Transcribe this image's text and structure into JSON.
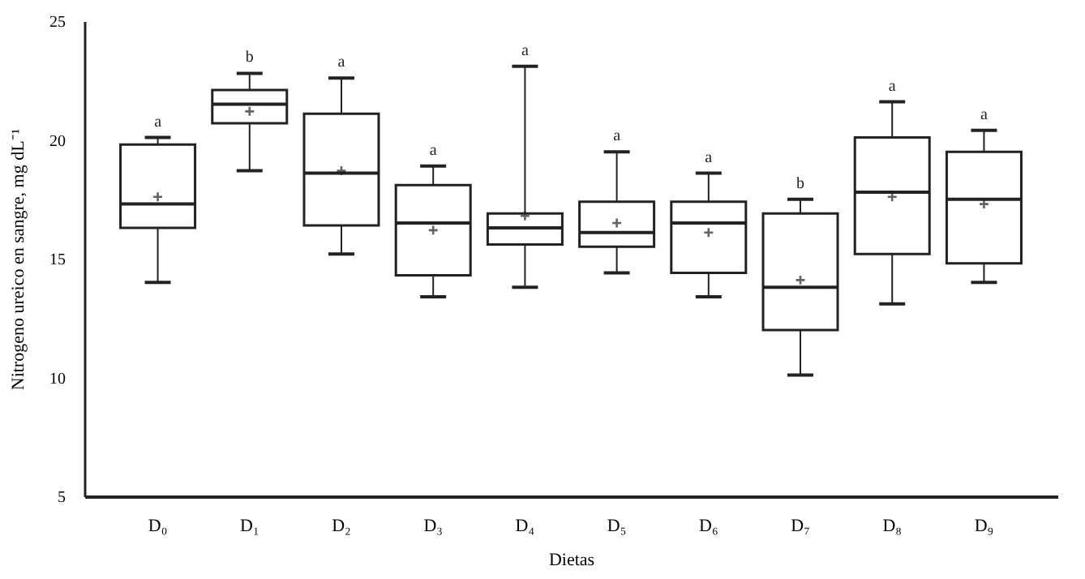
{
  "chart_data": {
    "type": "box",
    "xlabel": "Dietas",
    "ylabel": "Nitrogeno ureico en sangre, mg dL⁻¹",
    "categories": [
      "D₀",
      "D₁",
      "D₂",
      "D₃",
      "D₄",
      "D₅",
      "D₆",
      "D₇",
      "D₈",
      "D₉"
    ],
    "boxes": [
      {
        "low": 14.0,
        "q1": 16.3,
        "median": 17.3,
        "q3": 19.8,
        "high": 20.1,
        "mean": 17.6
      },
      {
        "low": 18.7,
        "q1": 20.7,
        "median": 21.5,
        "q3": 22.1,
        "high": 22.8,
        "mean": 21.2
      },
      {
        "low": 15.2,
        "q1": 16.4,
        "median": 18.6,
        "q3": 21.1,
        "high": 22.6,
        "mean": 18.7
      },
      {
        "low": 13.4,
        "q1": 14.3,
        "median": 16.5,
        "q3": 18.1,
        "high": 18.9,
        "mean": 16.2
      },
      {
        "low": 13.8,
        "q1": 15.6,
        "median": 16.3,
        "q3": 16.9,
        "high": 23.1,
        "mean": 16.8
      },
      {
        "low": 14.4,
        "q1": 15.5,
        "median": 16.1,
        "q3": 17.4,
        "high": 19.5,
        "mean": 16.5
      },
      {
        "low": 13.4,
        "q1": 14.4,
        "median": 16.5,
        "q3": 17.4,
        "high": 18.6,
        "mean": 16.1
      },
      {
        "low": 10.1,
        "q1": 12.0,
        "median": 13.8,
        "q3": 16.9,
        "high": 17.5,
        "mean": 14.1
      },
      {
        "low": 13.1,
        "q1": 15.2,
        "median": 17.8,
        "q3": 20.1,
        "high": 21.6,
        "mean": 17.6
      },
      {
        "low": 14.0,
        "q1": 14.8,
        "median": 17.5,
        "q3": 19.5,
        "high": 20.4,
        "mean": 17.3
      }
    ],
    "annotations": [
      "a",
      "b",
      "a",
      "a",
      "a",
      "a",
      "a",
      "b",
      "a",
      "a"
    ],
    "ylim": [
      5,
      25
    ],
    "yticks": [
      5,
      10,
      15,
      20,
      25
    ],
    "grid": false
  }
}
